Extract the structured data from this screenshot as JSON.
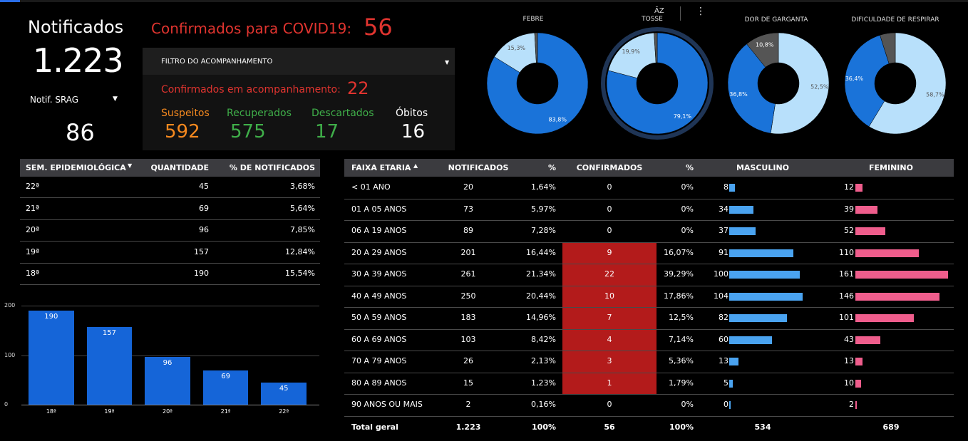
{
  "kpi": {
    "notificados_label": "Notificados",
    "notificados_value": "1.223",
    "srag_label": "Notif. SRAG",
    "srag_value": "86",
    "confirmados_label": "Confirmados para COVID19:",
    "confirmados_value": "56"
  },
  "filtro": {
    "title": "FILTRO DO ACOMPANHAMENTO",
    "acomp_label": "Confirmados em acompanhamento:",
    "acomp_value": "22",
    "stats": [
      {
        "label": "Suspeitos",
        "value": "592",
        "color": "#f5891f"
      },
      {
        "label": "Recuperados",
        "value": "575",
        "color": "#3fae49"
      },
      {
        "label": "Descartados",
        "value": "17",
        "color": "#3fae49"
      },
      {
        "label": "Óbitos",
        "value": "16",
        "color": "#ffffff"
      }
    ]
  },
  "toolbar": {
    "sort_icon_label": "ĀZ",
    "more_icon": "more-vert-icon"
  },
  "donuts": [
    {
      "title": "FEBRE",
      "slices": [
        {
          "value": 83.8,
          "label": "83,8%",
          "color": "#1a73d9"
        },
        {
          "value": 15.3,
          "label": "15,3%",
          "color": "#b8e0fb"
        },
        {
          "value": 0.9,
          "label": "",
          "color": "#555555"
        }
      ]
    },
    {
      "title": "TOSSE",
      "slices": [
        {
          "value": 79.1,
          "label": "79,1%",
          "color": "#1a73d9"
        },
        {
          "value": 19.9,
          "label": "19,9%",
          "color": "#b8e0fb"
        },
        {
          "value": 1.0,
          "label": "",
          "color": "#555555"
        }
      ]
    },
    {
      "title": "DOR DE GARGANTA",
      "slices": [
        {
          "value": 52.5,
          "label": "52,5%",
          "color": "#b8e0fb"
        },
        {
          "value": 36.8,
          "label": "36,8%",
          "color": "#1a73d9"
        },
        {
          "value": 10.8,
          "label": "10,8%",
          "color": "#555555"
        }
      ]
    },
    {
      "title": "DIFICULDADE  DE RESPIRAR",
      "slices": [
        {
          "value": 58.7,
          "label": "58,7%",
          "color": "#b8e0fb"
        },
        {
          "value": 36.4,
          "label": "36,4%",
          "color": "#1a73d9"
        },
        {
          "value": 4.9,
          "label": "",
          "color": "#555555"
        }
      ]
    }
  ],
  "semana_table": {
    "headers": [
      "SEM. EPIDEMIOLÓGICA",
      "QUANTIDADE",
      "% DE NOTIFICADOS"
    ],
    "rows": [
      [
        "22ª",
        "45",
        "3,68%"
      ],
      [
        "21ª",
        "69",
        "5,64%"
      ],
      [
        "20ª",
        "96",
        "7,85%"
      ],
      [
        "19ª",
        "157",
        "12,84%"
      ],
      [
        "18ª",
        "190",
        "15,54%"
      ]
    ]
  },
  "chart_data": {
    "type": "bar",
    "categories": [
      "18ª",
      "19ª",
      "20ª",
      "21ª",
      "22ª"
    ],
    "values": [
      190,
      157,
      96,
      69,
      45
    ],
    "ylim": [
      0,
      200
    ],
    "yticks": [
      "0",
      "100",
      "200"
    ],
    "grid": true,
    "color": "#1565d8"
  },
  "faixa_table": {
    "headers": [
      "FAIXA ETARIA",
      "NOTIFICADOS",
      "%",
      "CONFIRMADOS",
      "%",
      "MASCULINO",
      "FEMININO"
    ],
    "rows": [
      [
        "< 01 ANO",
        "20",
        "1,64%",
        "0",
        "0%",
        "8",
        "12"
      ],
      [
        "01 A 05 ANOS",
        "73",
        "5,97%",
        "0",
        "0%",
        "34",
        "39"
      ],
      [
        "06 A 19 ANOS",
        "89",
        "7,28%",
        "0",
        "0%",
        "37",
        "52"
      ],
      [
        "20 A 29 ANOS",
        "201",
        "16,44%",
        "9",
        "16,07%",
        "91",
        "110"
      ],
      [
        "30 A 39 ANOS",
        "261",
        "21,34%",
        "22",
        "39,29%",
        "100",
        "161"
      ],
      [
        "40 A 49 ANOS",
        "250",
        "20,44%",
        "10",
        "17,86%",
        "104",
        "146"
      ],
      [
        "50 A 59 ANOS",
        "183",
        "14,96%",
        "7",
        "12,5%",
        "82",
        "101"
      ],
      [
        "60 A 69 ANOS",
        "103",
        "8,42%",
        "4",
        "7,14%",
        "60",
        "43"
      ],
      [
        "70 A 79 ANOS",
        "26",
        "2,13%",
        "3",
        "5,36%",
        "13",
        "13"
      ],
      [
        "80 A 89 ANOS",
        "15",
        "1,23%",
        "1",
        "1,79%",
        "5",
        "10"
      ],
      [
        "90 ANOS OU MAIS",
        "2",
        "0,16%",
        "0",
        "0%",
        "0",
        "2"
      ]
    ],
    "total": [
      "Total geral",
      "1.223",
      "100%",
      "56",
      "100%",
      "534",
      "689"
    ]
  }
}
